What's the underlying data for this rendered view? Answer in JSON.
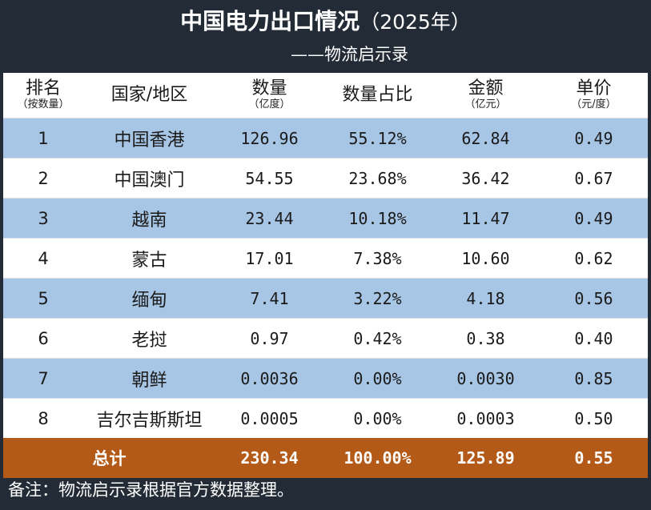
{
  "title": {
    "main": "中国电力出口情况",
    "year": "（2025年）",
    "subtitle": "——物流启示录"
  },
  "columns": [
    {
      "label": "排名",
      "sub": "（按数量）"
    },
    {
      "label": "国家/地区",
      "sub": ""
    },
    {
      "label": "数量",
      "sub": "（亿度）"
    },
    {
      "label": "数量占比",
      "sub": ""
    },
    {
      "label": "金额",
      "sub": "（亿元）"
    },
    {
      "label": "单价",
      "sub": "（元/度）"
    }
  ],
  "rows": [
    {
      "rank": "1",
      "name": "中国香港",
      "qty": "126.96",
      "share": "55.12%",
      "amount": "62.84",
      "price": "0.49"
    },
    {
      "rank": "2",
      "name": "中国澳门",
      "qty": "54.55",
      "share": "23.68%",
      "amount": "36.42",
      "price": "0.67"
    },
    {
      "rank": "3",
      "name": "越南",
      "qty": "23.44",
      "share": "10.18%",
      "amount": "11.47",
      "price": "0.49"
    },
    {
      "rank": "4",
      "name": "蒙古",
      "qty": "17.01",
      "share": "7.38%",
      "amount": "10.60",
      "price": "0.62"
    },
    {
      "rank": "5",
      "name": "缅甸",
      "qty": "7.41",
      "share": "3.22%",
      "amount": "4.18",
      "price": "0.56"
    },
    {
      "rank": "6",
      "name": "老挝",
      "qty": "0.97",
      "share": "0.42%",
      "amount": "0.38",
      "price": "0.40"
    },
    {
      "rank": "7",
      "name": "朝鲜",
      "qty": "0.0036",
      "share": "0.00%",
      "amount": "0.0030",
      "price": "0.85"
    },
    {
      "rank": "8",
      "name": "吉尔吉斯斯坦",
      "qty": "0.0005",
      "share": "0.00%",
      "amount": "0.0003",
      "price": "0.50"
    }
  ],
  "total": {
    "label": "总计",
    "qty": "230.34",
    "share": "100.00%",
    "amount": "125.89",
    "price": "0.55"
  },
  "footnote": "备注：物流启示录根据官方数据整理。",
  "colors": {
    "background": "#222b36",
    "row_blue": "#a7c5e4",
    "row_white": "#ffffff",
    "total_orange": "#b45a18"
  }
}
